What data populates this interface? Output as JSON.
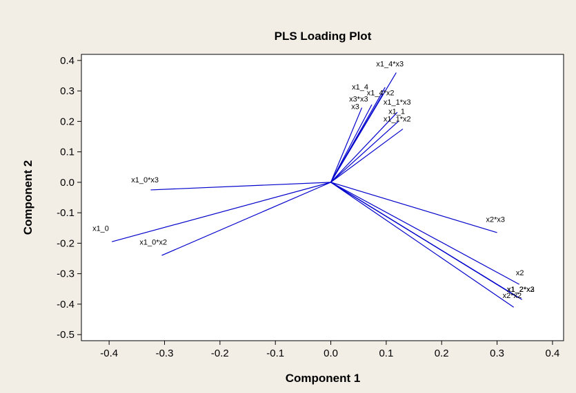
{
  "colors": {
    "page_background": "#f2eee6",
    "plot_background": "#ffffff",
    "vector_line": "#0000cc",
    "frame": "#000000"
  },
  "chart_data": {
    "type": "line",
    "title": "PLS Loading Plot",
    "xlabel": "Component 1",
    "ylabel": "Component 2",
    "xlim": [
      -0.45,
      0.42
    ],
    "ylim": [
      -0.52,
      0.42
    ],
    "x_ticks": [
      "-0.4",
      "-0.3",
      "-0.2",
      "-0.1",
      "0.0",
      "0.1",
      "0.2",
      "0.3",
      "0.4"
    ],
    "y_ticks": [
      "0.4",
      "0.3",
      "0.2",
      "0.1",
      "0.0",
      "-0.1",
      "-0.2",
      "-0.3",
      "-0.4",
      "-0.5"
    ],
    "grid": false,
    "legend": "none",
    "origin": [
      0,
      0
    ],
    "vectors": [
      {
        "label": "x1_4*x3",
        "x": 0.118,
        "y": 0.36
      },
      {
        "label": "x1_4",
        "x": 0.098,
        "y": 0.312
      },
      {
        "label": "x1_4*x2",
        "x": 0.094,
        "y": 0.29
      },
      {
        "label": "x3*x3",
        "x": 0.056,
        "y": 0.245
      },
      {
        "label": "x3",
        "x": 0.074,
        "y": 0.255
      },
      {
        "label": "x1_1*x3",
        "x": 0.12,
        "y": 0.23
      },
      {
        "label": "x1_1",
        "x": 0.122,
        "y": 0.2
      },
      {
        "label": "x1_1*x2",
        "x": 0.13,
        "y": 0.175
      },
      {
        "label": "x1_0*x3",
        "x": -0.325,
        "y": -0.025
      },
      {
        "label": "x1_0",
        "x": -0.395,
        "y": -0.195
      },
      {
        "label": "x1_0*x2",
        "x": -0.305,
        "y": -0.24
      },
      {
        "label": "x2*x3",
        "x": 0.3,
        "y": -0.165
      },
      {
        "label": "x2",
        "x": 0.34,
        "y": -0.335
      },
      {
        "label": "x1_2*x3",
        "x": 0.345,
        "y": -0.385
      },
      {
        "label": "x1_2",
        "x": 0.335,
        "y": -0.375
      },
      {
        "label": "x1_2*x2",
        "x": 0.34,
        "y": -0.38
      },
      {
        "label": "x2*x2",
        "x": 0.33,
        "y": -0.41
      }
    ],
    "labels": [
      {
        "text": "x1_4*x3",
        "x": 0.082,
        "y": 0.38
      },
      {
        "text": "x1_4",
        "x": 0.038,
        "y": 0.305
      },
      {
        "text": "x1_4*x2",
        "x": 0.065,
        "y": 0.285
      },
      {
        "text": "x3*x3",
        "x": 0.033,
        "y": 0.265
      },
      {
        "text": "x3",
        "x": 0.037,
        "y": 0.24
      },
      {
        "text": "x1_1*x3",
        "x": 0.095,
        "y": 0.255
      },
      {
        "text": "x1_1",
        "x": 0.104,
        "y": 0.225
      },
      {
        "text": "x1_1*x2",
        "x": 0.095,
        "y": 0.2
      },
      {
        "text": "x1_0*x3",
        "x": -0.36,
        "y": 0.0
      },
      {
        "text": "x1_0",
        "x": -0.43,
        "y": -0.16
      },
      {
        "text": "x1_0*x2",
        "x": -0.345,
        "y": -0.205
      },
      {
        "text": "x2*x3",
        "x": 0.28,
        "y": -0.13
      },
      {
        "text": "x2",
        "x": 0.334,
        "y": -0.305
      },
      {
        "text": "x1_2*x3",
        "x": 0.318,
        "y": -0.36
      },
      {
        "text": "x1_2",
        "x": 0.318,
        "y": -0.36
      },
      {
        "text": "x1_2*x2",
        "x": 0.318,
        "y": -0.36
      },
      {
        "text": "x2*x2",
        "x": 0.31,
        "y": -0.38
      }
    ]
  }
}
